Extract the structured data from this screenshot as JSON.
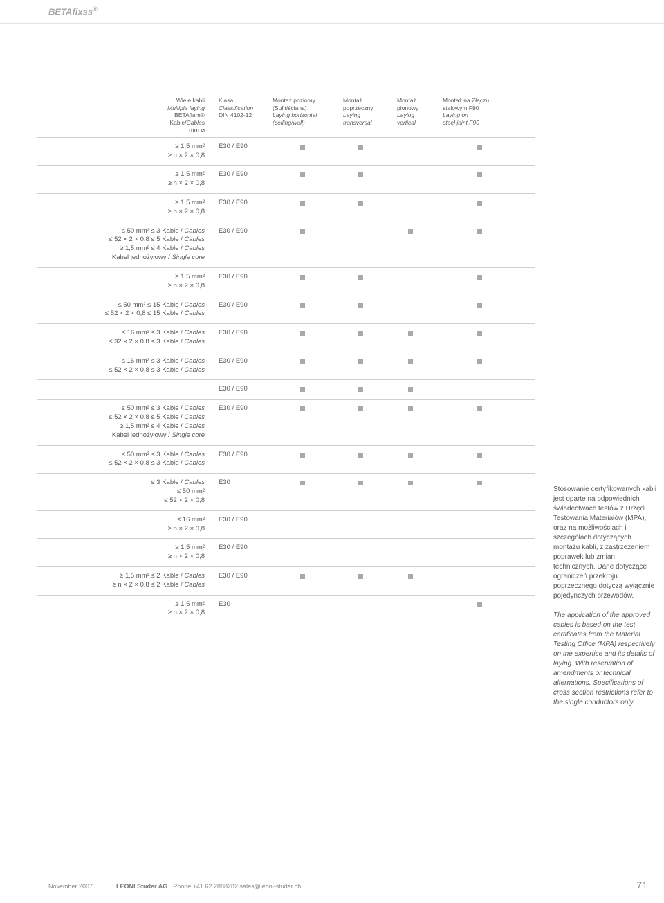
{
  "brand": "BETAfixss",
  "brand_sup": "®",
  "header": {
    "col1": {
      "l1": "Wiele kabli",
      "l2": "Multiple laying",
      "l3": "BETAflam®",
      "l4": "Kable/Cables",
      "l5": "mm ⌀"
    },
    "col2": {
      "l1": "Klasa",
      "l2": "Classification",
      "l3": "DIN 4102-12"
    },
    "col3": {
      "l1": "Montaż poziomy",
      "l2": "(Sufit/ściana)",
      "l3": "Laying horizontal",
      "l4": "(ceiling/wall)"
    },
    "col4": {
      "l1": "Montaż",
      "l2": "poprzeczny",
      "l3": "Laying",
      "l4": "transversal"
    },
    "col5": {
      "l1": "Montaż",
      "l2": "pionowy",
      "l3": "Laying",
      "l4": "vertical"
    },
    "col6": {
      "l1": "Montaż na Złączu",
      "l2": "stalowym F90",
      "l3": "Laying on",
      "l4": "steel joint F90"
    }
  },
  "rows": [
    {
      "c1": "≥ 1,5 mm²\n≥ n × 2 × 0,8",
      "c2": "E30 / E90",
      "m": [
        1,
        1,
        0,
        1
      ]
    },
    {
      "c1": "≥ 1,5 mm²\n≥ n × 2 × 0,8",
      "c2": "E30 / E90",
      "m": [
        1,
        1,
        0,
        1
      ]
    },
    {
      "c1": "≥ 1,5 mm²\n≥ n × 2 × 0,8",
      "c2": "E30 / E90",
      "m": [
        1,
        1,
        0,
        1
      ]
    },
    {
      "c1": "≤ 50 mm² ≤ 3 Kable / Cables\n≤ 52 × 2 × 0,8 ≤ 5 Kable / Cables\n≥ 1,5 mm² ≤ 4 Kable / Cables\nKabel jednożyłowy / Single core",
      "c2": "E30 / E90",
      "m": [
        1,
        0,
        1,
        1
      ]
    },
    {
      "c1": "≥ 1,5 mm²\n≥ n × 2 × 0,8",
      "c2": "E30 / E90",
      "m": [
        1,
        1,
        0,
        1
      ]
    },
    {
      "c1": "≤ 50 mm² ≤ 15 Kable / Cables\n≤ 52 × 2 × 0,8 ≤ 15 Kable / Cables",
      "c2": "E30 / E90",
      "m": [
        1,
        1,
        0,
        1
      ]
    },
    {
      "c1": "≤ 16 mm² ≤ 3 Kable / Cables\n≤ 32 × 2 × 0,8 ≤ 3 Kable / Cables",
      "c2": "E30 / E90",
      "m": [
        1,
        1,
        1,
        1
      ]
    },
    {
      "c1": "≤ 16 mm² ≤ 3 Kable / Cables\n≤ 52 × 2 × 0,8 ≤ 3 Kable / Cables",
      "c2": "E30 / E90",
      "m": [
        1,
        1,
        1,
        1
      ]
    },
    {
      "c1": "",
      "c2": "E30 / E90",
      "m": [
        1,
        1,
        1,
        0
      ]
    },
    {
      "c1": "≤ 50 mm² ≤ 3 Kable / Cables\n≤ 52 × 2 × 0,8 ≤ 5 Kable / Cables\n≥ 1,5 mm² ≤ 4 Kable / Cables\nKabel jednożyłowy / Single core",
      "c2": "E30 / E90",
      "m": [
        1,
        1,
        1,
        1
      ]
    },
    {
      "c1": "≤ 50 mm² ≤ 3 Kable / Cables\n≤ 52 × 2 × 0,8 ≤ 3 Kable / Cables",
      "c2": "E30 / E90",
      "m": [
        1,
        1,
        1,
        1
      ]
    },
    {
      "c1": "≤ 3 Kable / Cables\n≤ 50 mm²\n≤ 52 × 2 × 0,8",
      "c2": "E30",
      "m": [
        1,
        1,
        1,
        1
      ]
    },
    {
      "c1": "≤ 16 mm²\n≥ n × 2 × 0,8",
      "c2": "E30 / E90",
      "m": [
        0,
        0,
        0,
        0
      ]
    },
    {
      "c1": "≥ 1,5 mm²\n≥ n × 2 × 0,8",
      "c2": "E30 / E90",
      "m": [
        0,
        0,
        0,
        0
      ]
    },
    {
      "c1": "≥ 1,5 mm² ≤ 2 Kable / Cables\n≥ n × 2 × 0,8 ≤ 2 Kable / Cables",
      "c2": "E30 / E90",
      "m": [
        1,
        1,
        1,
        0
      ]
    },
    {
      "c1": "≥ 1,5 mm²\n≥ n × 2 × 0,8",
      "c2": "E30",
      "m": [
        0,
        0,
        0,
        1
      ]
    }
  ],
  "sidebar": {
    "pl": "Stosowanie certyfikowanych kabli jest oparte na odpowiednich świadectwach testów z Urzędu Testowania Materiałów (MPA), oraz na możliwościach i szczegółach dotyczących montażu kabli, z zastrzeżeniem poprawek lub zmian technicznych. Dane dotyczące ograniczeń przekroju poprzecznego dotyczą wyłącznie pojedynczych przewodów.",
    "en": "The application of the approved cables is based on the test certificates from the Material Testing Office (MPA) respectively on the expertise and its details of laying. With reservation of amendments or technical alternations. Specifications of cross section restrictions refer to the single conductors only."
  },
  "footer": {
    "date": "November 2007",
    "company": "LEONI Studer AG",
    "contact": "Phone +41 62 2888282  sales@leoni-studer.ch",
    "page": "71"
  },
  "colors": {
    "text": "#58595b",
    "muted": "#a8a8aa",
    "square": "#a8a9ad",
    "rule": "#cfcfd1"
  }
}
